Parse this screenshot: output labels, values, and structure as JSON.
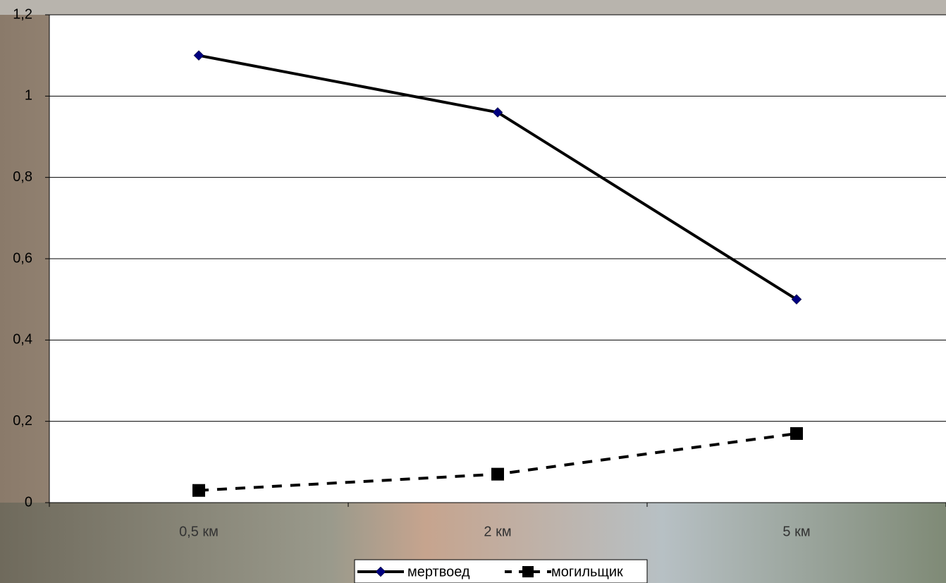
{
  "chart_data": {
    "type": "line",
    "categories": [
      "0,5 км",
      "2 км",
      "5 км"
    ],
    "series": [
      {
        "name": "мертвоед",
        "color": "#000000",
        "line_style": "solid",
        "marker": "diamond",
        "marker_color": "#000080",
        "values": [
          1.1,
          0.96,
          0.5
        ]
      },
      {
        "name": "могильщик",
        "color": "#000000",
        "line_style": "dashed",
        "marker": "square",
        "marker_color": "#000000",
        "values": [
          0.03,
          0.07,
          0.17
        ]
      }
    ],
    "ylim": [
      0,
      1.2
    ],
    "yticks": [
      0,
      {
        "value": 0.2,
        "label": "0,2"
      },
      {
        "value": 0.4,
        "label": "0,4"
      },
      {
        "value": 0.6,
        "label": "0,6"
      },
      {
        "value": 0.8,
        "label": "0,8"
      },
      1,
      {
        "value": 1.2,
        "label": "1,2"
      }
    ],
    "grid": true,
    "legend": "bottom"
  }
}
